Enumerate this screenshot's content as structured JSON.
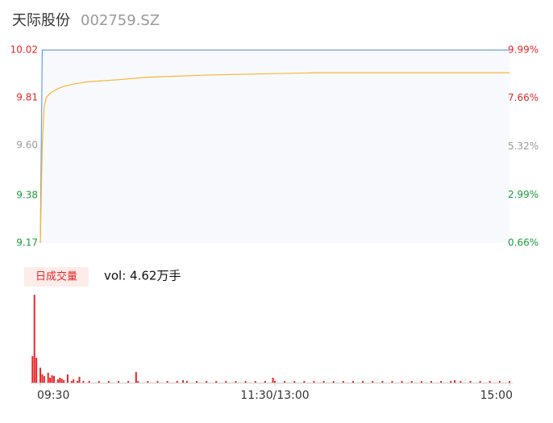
{
  "header": {
    "title": "天际股份",
    "code": "002759.SZ"
  },
  "chart_data": [
    {
      "type": "line",
      "xlim": [
        0,
        240
      ],
      "ylim": [
        9.17,
        10.02
      ],
      "yticks": [
        9.17,
        9.38,
        {
          "value": 9.6,
          "label": "9.60"
        },
        9.81,
        10.02
      ],
      "y2lim": [
        0.66,
        9.99
      ],
      "y2ticks": [
        {
          "value": 0.66,
          "label": "0.66%"
        },
        {
          "value": 2.99,
          "label": "2.99%"
        },
        {
          "value": 5.32,
          "label": "5.32%"
        },
        {
          "value": 7.66,
          "label": "7.66%"
        },
        {
          "value": 9.99,
          "label": "9.99%"
        }
      ],
      "ytick_colors": [
        "#1a9b3c",
        "#1a9b3c",
        "#999999",
        "#e8262a",
        "#e8262a"
      ],
      "background": "#f8f9fd",
      "series": [
        {
          "color": "#6f9de8",
          "x": [
            0,
            1,
            240
          ],
          "values": [
            9.17,
            10.02,
            10.02
          ]
        },
        {
          "color": "#f5b731",
          "x": [
            0,
            1,
            2,
            3,
            5,
            7,
            9,
            12,
            17,
            24,
            41,
            54,
            86,
            141,
            240
          ],
          "values": [
            9.17,
            9.6,
            9.77,
            9.81,
            9.83,
            9.84,
            9.85,
            9.86,
            9.87,
            9.88,
            9.89,
            9.9,
            9.91,
            9.92,
            9.92
          ]
        }
      ]
    },
    {
      "type": "bar",
      "title": "日成交量",
      "annotation": "vol: 4.62万手",
      "color": "#e8262a",
      "xlim": [
        0,
        240
      ],
      "ylim": [
        0,
        7500
      ],
      "xticks": [
        {
          "value": 0,
          "label": "09:30"
        },
        {
          "value": 120,
          "label": "11:30/13:00"
        },
        {
          "value": 240,
          "label": "15:00"
        }
      ],
      "x": [
        -4,
        -3,
        -2,
        0,
        1,
        2,
        4,
        5,
        6,
        7,
        9,
        10,
        11,
        12,
        14,
        16,
        17,
        19,
        20,
        22,
        25,
        30,
        35,
        40,
        45,
        49,
        50,
        55,
        60,
        65,
        70,
        73,
        75,
        80,
        85,
        90,
        95,
        100,
        105,
        110,
        115,
        119,
        120,
        125,
        130,
        135,
        140,
        145,
        150,
        155,
        160,
        165,
        170,
        175,
        180,
        185,
        190,
        195,
        200,
        205,
        210,
        212,
        215,
        220,
        225,
        230,
        235,
        240
      ],
      "values": [
        2240,
        7420,
        2100,
        1260,
        700,
        560,
        840,
        420,
        630,
        560,
        280,
        420,
        350,
        210,
        700,
        140,
        280,
        140,
        490,
        140,
        140,
        140,
        140,
        140,
        140,
        910,
        140,
        140,
        140,
        140,
        140,
        210,
        140,
        140,
        140,
        140,
        140,
        140,
        140,
        140,
        140,
        420,
        140,
        140,
        140,
        140,
        140,
        140,
        140,
        140,
        140,
        140,
        140,
        140,
        140,
        140,
        140,
        140,
        140,
        140,
        140,
        210,
        140,
        140,
        140,
        140,
        140,
        140
      ]
    }
  ]
}
